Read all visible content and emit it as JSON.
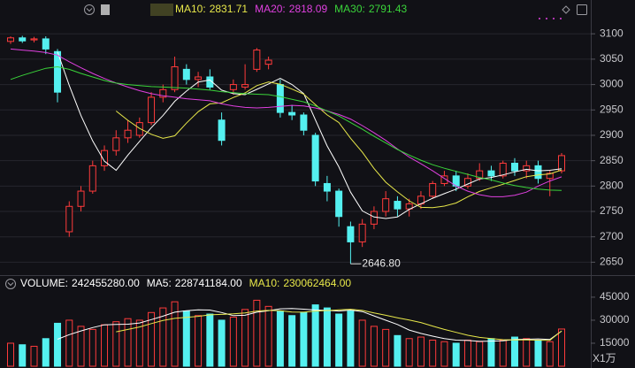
{
  "chart_data": [
    {
      "type": "candlestick",
      "up_color": "#ff3b3b",
      "down_color": "#54f0f0",
      "ylim": [
        2635,
        3123
      ],
      "yticks": [
        2650,
        2700,
        2750,
        2800,
        2850,
        2900,
        2950,
        3000,
        3050,
        3100
      ],
      "grid": true,
      "open": [
        3085,
        3092,
        3088,
        3090,
        3065,
        2710,
        2760,
        2790,
        2840,
        2870,
        2895,
        2900,
        2925,
        2975,
        2990,
        3030,
        3010,
        3015,
        2930,
        2990,
        2995,
        3030,
        3040,
        3000,
        2945,
        2940,
        2900,
        2805,
        2790,
        2720,
        2690,
        2725,
        2750,
        2770,
        2755,
        2765,
        2780,
        2805,
        2820,
        2800,
        2815,
        2830,
        2820,
        2845,
        2830,
        2840,
        2815,
        2830
      ],
      "high": [
        3095,
        3096,
        3094,
        3095,
        3070,
        2770,
        2800,
        2850,
        2880,
        2910,
        2930,
        2935,
        2985,
        3000,
        3055,
        3040,
        3025,
        3030,
        2945,
        3010,
        3040,
        3072,
        3055,
        3010,
        2960,
        2945,
        2905,
        2820,
        2795,
        2730,
        2735,
        2760,
        2790,
        2780,
        2775,
        2790,
        2810,
        2830,
        2830,
        2825,
        2845,
        2840,
        2850,
        2855,
        2850,
        2850,
        2830,
        2865
      ],
      "low": [
        3080,
        3082,
        3083,
        3060,
        2965,
        2700,
        2750,
        2785,
        2830,
        2860,
        2885,
        2895,
        2920,
        2965,
        2985,
        3000,
        2995,
        2990,
        2880,
        2980,
        2990,
        3025,
        3030,
        2935,
        2930,
        2900,
        2800,
        2770,
        2720,
        2646.8,
        2680,
        2715,
        2740,
        2740,
        2740,
        2755,
        2775,
        2800,
        2790,
        2795,
        2810,
        2810,
        2815,
        2820,
        2815,
        2805,
        2780,
        2825
      ],
      "close": [
        3092,
        3086,
        3090,
        3070,
        2985,
        2760,
        2790,
        2840,
        2870,
        2895,
        2910,
        2925,
        2975,
        2990,
        3035,
        3010,
        3015,
        2995,
        2890,
        3000,
        3000,
        3068,
        3048,
        2945,
        2940,
        2910,
        2810,
        2790,
        2740,
        2690,
        2725,
        2750,
        2775,
        2755,
        2765,
        2780,
        2805,
        2820,
        2800,
        2815,
        2830,
        2820,
        2845,
        2830,
        2840,
        2815,
        2825,
        2860
      ],
      "low_label": {
        "value": 2646.8,
        "label": "2646.80"
      },
      "series": [
        {
          "color": "#ffffff",
          "values": [
            null,
            null,
            null,
            null,
            3064.6,
            2998.2,
            2939,
            2889,
            2849,
            2831,
            2861,
            2888,
            2915,
            2939,
            2967,
            2987,
            3005,
            3009,
            2989,
            2982,
            2980,
            2990.6,
            3001.2,
            3012.2,
            3000.2,
            2982.2,
            2930.6,
            2879,
            2838,
            2788,
            2751,
            2739,
            2736,
            2739,
            2754,
            2765,
            2776,
            2785,
            2794,
            2804,
            2814,
            2817,
            2822,
            2828,
            2833,
            2830,
            2831,
            2834
          ]
        },
        {
          "name": "MA10:",
          "label": "2831.71",
          "color": "#e8e84a",
          "values": [
            null,
            null,
            null,
            null,
            null,
            null,
            null,
            null,
            null,
            2947.8,
            2929.6,
            2913.5,
            2902,
            2894,
            2899,
            2924,
            2946.5,
            2962,
            2964,
            2974.5,
            2983.5,
            2997.8,
            3005.1,
            3000.6,
            2991.1,
            2981.1,
            2960.6,
            2940.1,
            2925.1,
            2894.1,
            2866.6,
            2834.8,
            2807.5,
            2788.5,
            2771,
            2758,
            2757.5,
            2760.5,
            2766.5,
            2779,
            2789.5,
            2796.5,
            2803.5,
            2811,
            2818.5,
            2822,
            2824,
            2831.71
          ]
        },
        {
          "name": "MA20:",
          "label": "2818.09",
          "color": "#e040e0",
          "values": [
            3070,
            3068,
            3066,
            3063,
            3058,
            3045,
            3033,
            3022,
            3012,
            3003,
            2995,
            2988,
            2982,
            2978,
            2975,
            2972,
            2970,
            2968,
            2962,
            2958,
            2955,
            2954,
            2955,
            2957,
            2959,
            2958,
            2954,
            2948,
            2941,
            2932,
            2919,
            2905,
            2890,
            2873,
            2857,
            2844,
            2830,
            2815,
            2800,
            2790,
            2783,
            2779,
            2779,
            2782,
            2788,
            2800,
            2810,
            2818.09
          ]
        },
        {
          "name": "MA30:",
          "label": "2791.43",
          "color": "#3ad43a",
          "values": [
            3010,
            3018,
            3025,
            3032,
            3035,
            3030,
            3022,
            3015,
            3008,
            3003,
            3000,
            2998,
            2996,
            2995,
            2994,
            2993,
            2991,
            2989,
            2986,
            2984,
            2982,
            2981,
            2980,
            2976,
            2971,
            2966,
            2958,
            2948,
            2938,
            2925,
            2912,
            2898,
            2885,
            2872,
            2861,
            2851,
            2842,
            2835,
            2829,
            2823,
            2817,
            2812,
            2806,
            2801,
            2797,
            2794,
            2792,
            2791.43
          ]
        }
      ]
    },
    {
      "type": "volume",
      "name": "VOLUME:",
      "label": "242455280.00",
      "color": "#ffffff",
      "ylim": [
        0,
        49000
      ],
      "yticks": [
        15000,
        30000,
        45000
      ],
      "unit": "X1万",
      "values": [
        15000,
        14000,
        13000,
        18000,
        28000,
        30000,
        26000,
        24000,
        27000,
        29000,
        31000,
        30000,
        35000,
        38000,
        42000,
        36000,
        33000,
        34000,
        30000,
        32000,
        37000,
        43000,
        39000,
        36000,
        33000,
        35000,
        40000,
        38000,
        34000,
        36000,
        30000,
        26000,
        24000,
        20000,
        18000,
        19000,
        17000,
        16000,
        15000,
        17000,
        16000,
        18000,
        17000,
        19000,
        18000,
        17000,
        16000,
        24245.528
      ],
      "series": [
        {
          "name": "MA5:",
          "label": "228741184.00",
          "color": "#ffffff",
          "values": [
            null,
            null,
            null,
            null,
            17600,
            20600,
            23000,
            25200,
            27000,
            27200,
            27400,
            28200,
            30400,
            32600,
            35200,
            36200,
            36800,
            36600,
            35000,
            33000,
            33200,
            35200,
            36200,
            37400,
            37600,
            37200,
            36600,
            36400,
            36000,
            36600,
            35600,
            32800,
            30000,
            27200,
            23600,
            21400,
            19600,
            18000,
            17000,
            16800,
            16200,
            16400,
            16600,
            17400,
            17600,
            17800,
            17400,
            22874.1184
          ]
        },
        {
          "name": "MA10:",
          "label": "230062464.00",
          "color": "#e8e84a",
          "values": [
            null,
            null,
            null,
            null,
            null,
            null,
            null,
            null,
            null,
            22400,
            24000,
            25600,
            27800,
            29800,
            31200,
            31800,
            32500,
            33500,
            33800,
            34100,
            34700,
            36000,
            36400,
            36200,
            35300,
            35200,
            35900,
            36300,
            36700,
            37100,
            36400,
            34700,
            33200,
            31600,
            30100,
            28500,
            26200,
            24000,
            22100,
            20200,
            18800,
            18000,
            17300,
            17200,
            17200,
            17000,
            16900,
            23006.2464
          ]
        }
      ]
    }
  ]
}
